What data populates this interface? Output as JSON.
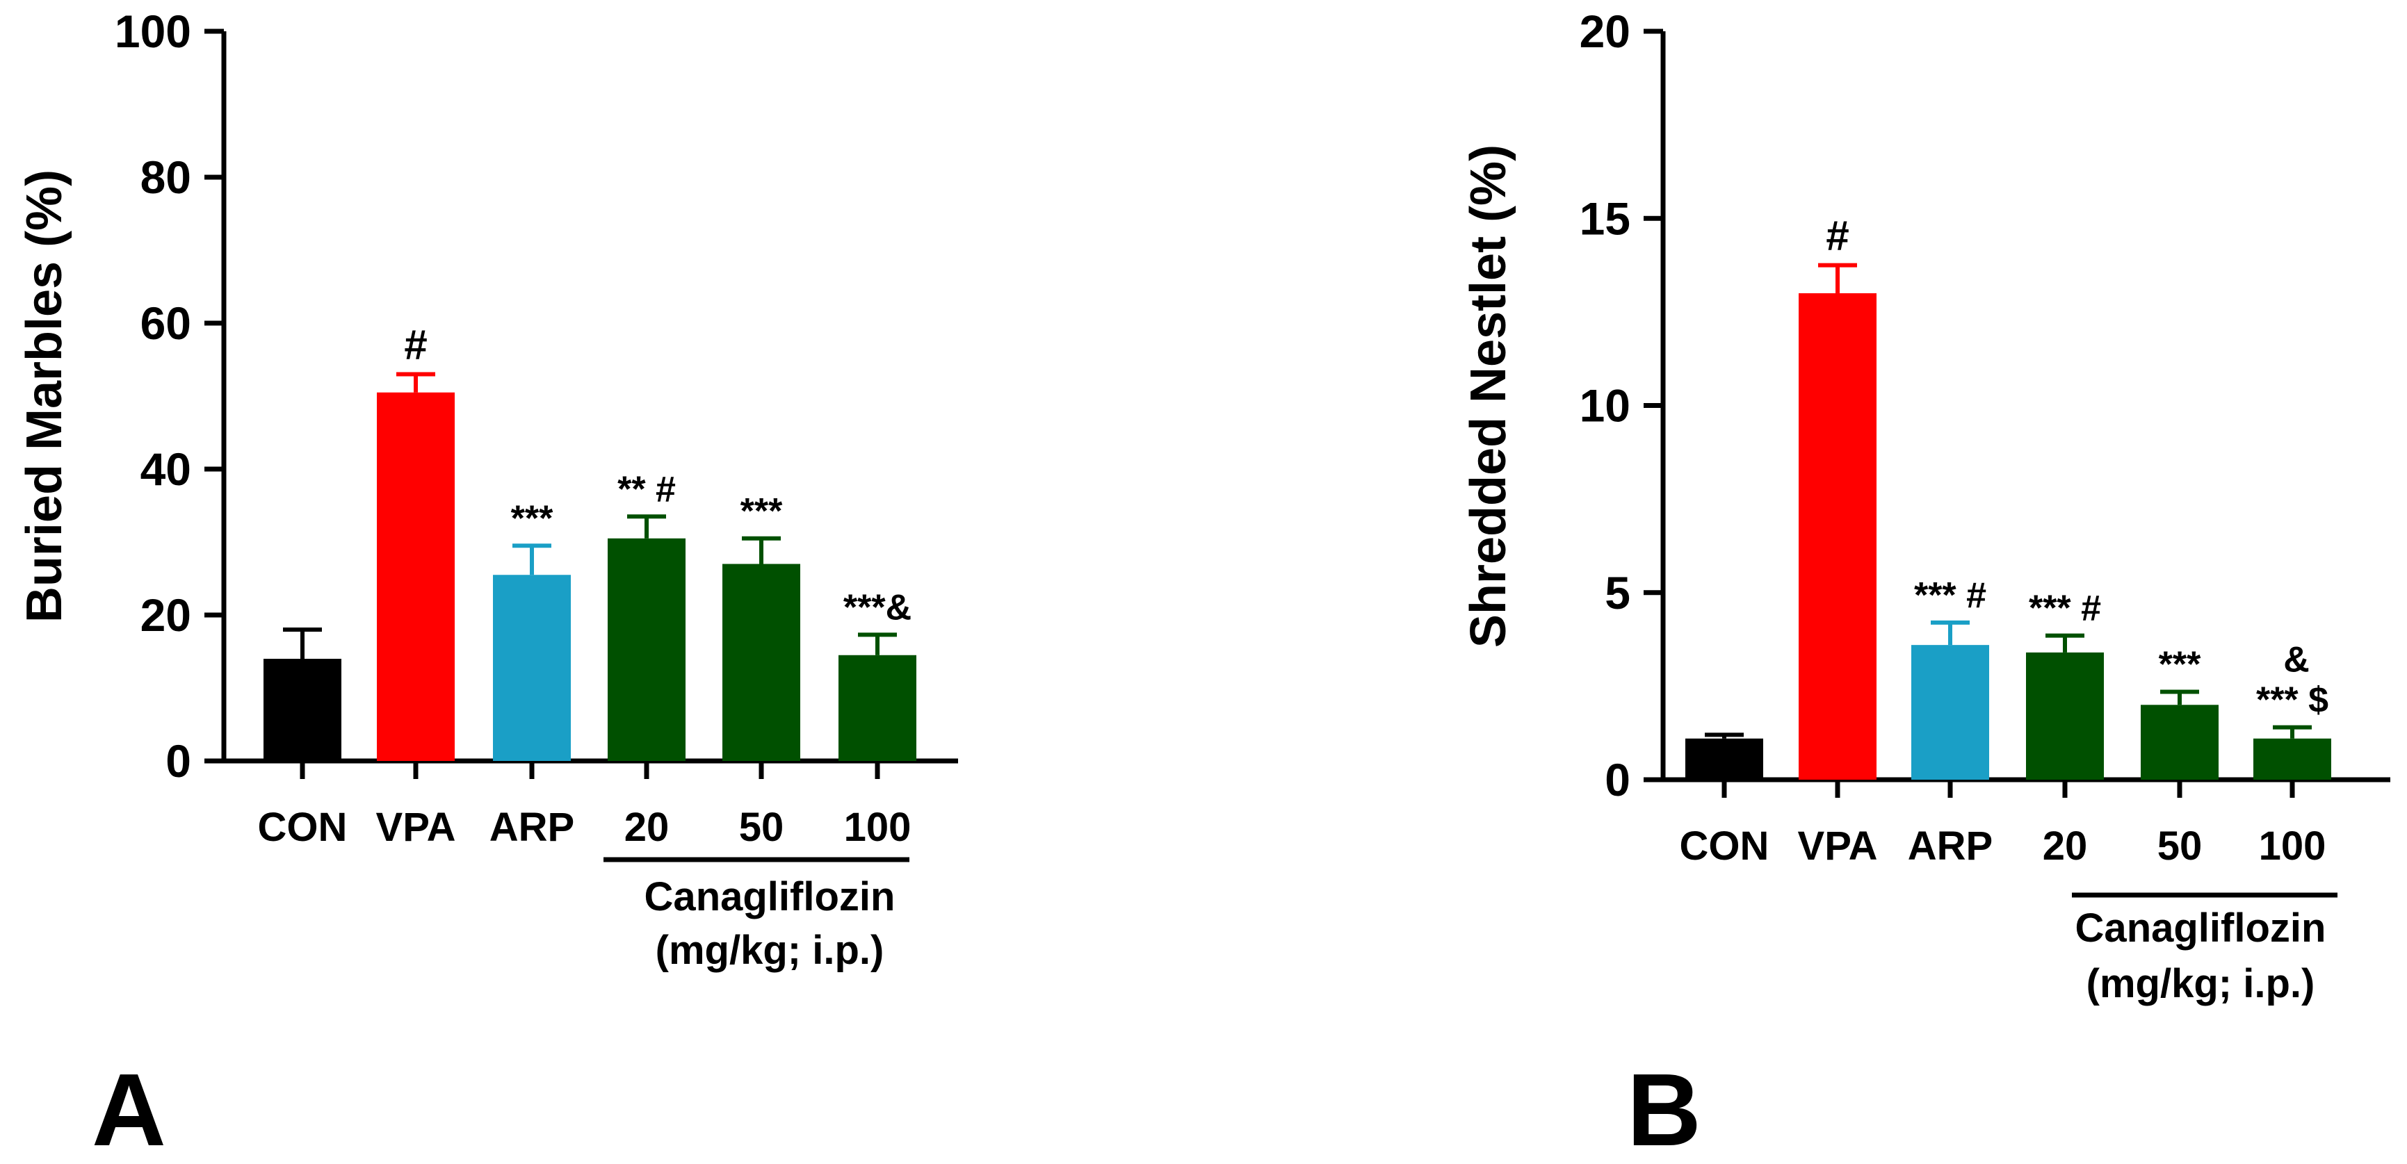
{
  "chart_data": [
    {
      "type": "bar",
      "panel": "A",
      "ylabel": "Buried Marbles (%)",
      "xlabel": "",
      "ylim": [
        0,
        100
      ],
      "yticks": [
        0,
        20,
        40,
        60,
        80,
        100
      ],
      "categories": [
        "CON",
        "VPA",
        "ARP",
        "20",
        "50",
        "100"
      ],
      "values": [
        14,
        50.5,
        25.5,
        30.5,
        27,
        14.5
      ],
      "errors": [
        4,
        2.5,
        4,
        3,
        3.5,
        2.8
      ],
      "colors": [
        "#000000",
        "#ff0000",
        "#1a9fc6",
        "#005000",
        "#005000",
        "#005000"
      ],
      "annotations": [
        "",
        "#",
        "***",
        "** #",
        "***",
        "***&"
      ],
      "group_label": [
        "Canagliflozin",
        "(mg/kg; i.p.)"
      ],
      "group_categories": [
        "20",
        "50",
        "100"
      ]
    },
    {
      "type": "bar",
      "panel": "B",
      "ylabel": "Shredded Nestlet (%)",
      "xlabel": "",
      "ylim": [
        0,
        20
      ],
      "yticks": [
        0,
        5,
        10,
        15,
        20
      ],
      "categories": [
        "CON",
        "VPA",
        "ARP",
        "20",
        "50",
        "100"
      ],
      "values": [
        1.1,
        13,
        3.6,
        3.4,
        2,
        1.1
      ],
      "errors": [
        0.1,
        0.75,
        0.6,
        0.45,
        0.35,
        0.3
      ],
      "colors": [
        "#000000",
        "#ff0000",
        "#1a9fc6",
        "#005000",
        "#005000",
        "#005000"
      ],
      "annotations": [
        "",
        "#",
        "*** #",
        "*** #",
        "***",
        "*** $"
      ],
      "extra_annotation": "&",
      "group_label": [
        "Canagliflozin",
        "(mg/kg; i.p.)"
      ],
      "group_categories": [
        "20",
        "50",
        "100"
      ]
    }
  ]
}
